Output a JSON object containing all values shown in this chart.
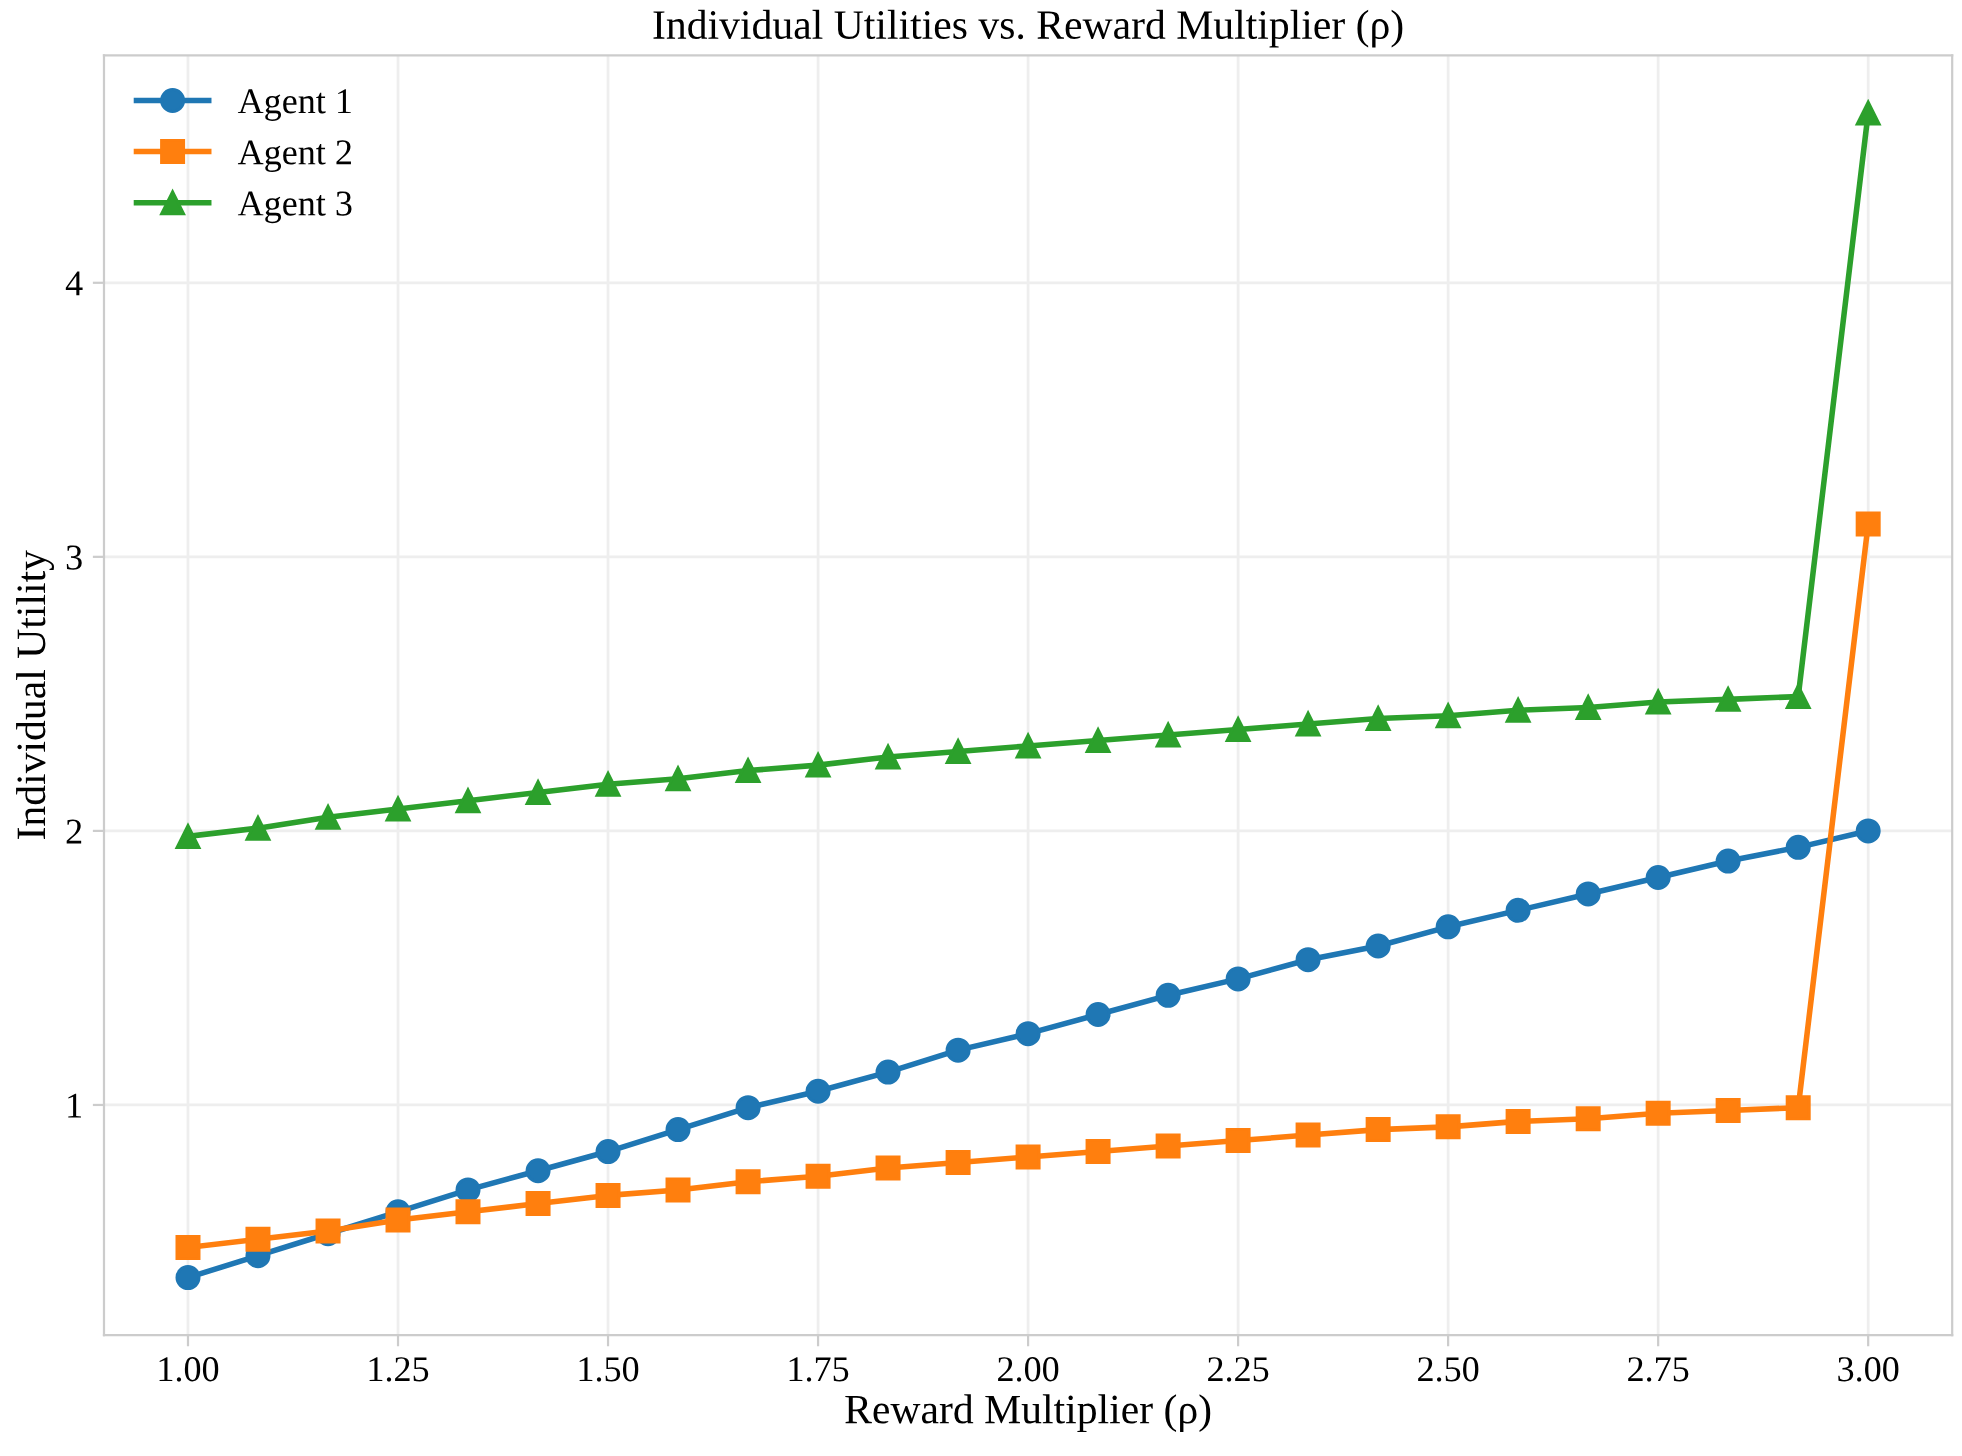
{
  "chart_data": {
    "type": "line",
    "title": "Individual Utilities vs. Reward Multiplier (ρ)",
    "xlabel": "Reward Multiplier (ρ)",
    "ylabel": "Individual Utility",
    "x": [
      1.0,
      1.0833,
      1.1667,
      1.25,
      1.3333,
      1.4167,
      1.5,
      1.5833,
      1.6667,
      1.75,
      1.8333,
      1.9167,
      2.0,
      2.0833,
      2.1667,
      2.25,
      2.3333,
      2.4167,
      2.5,
      2.5833,
      2.6667,
      2.75,
      2.8333,
      2.9167,
      3.0
    ],
    "series": [
      {
        "name": "Agent 1",
        "color": "#1f77b4",
        "marker": "circle",
        "values": [
          0.37,
          0.45,
          0.53,
          0.61,
          0.69,
          0.76,
          0.83,
          0.91,
          0.99,
          1.05,
          1.12,
          1.2,
          1.26,
          1.33,
          1.4,
          1.46,
          1.53,
          1.58,
          1.65,
          1.71,
          1.77,
          1.83,
          1.89,
          1.94,
          2.0
        ]
      },
      {
        "name": "Agent 2",
        "color": "#ff7f0e",
        "marker": "square",
        "values": [
          0.48,
          0.51,
          0.54,
          0.58,
          0.61,
          0.64,
          0.67,
          0.69,
          0.72,
          0.74,
          0.77,
          0.79,
          0.81,
          0.83,
          0.85,
          0.87,
          0.89,
          0.91,
          0.92,
          0.94,
          0.95,
          0.97,
          0.98,
          0.99,
          3.12
        ]
      },
      {
        "name": "Agent 3",
        "color": "#2ca02c",
        "marker": "triangle",
        "values": [
          1.98,
          2.01,
          2.05,
          2.08,
          2.11,
          2.14,
          2.17,
          2.19,
          2.22,
          2.24,
          2.27,
          2.29,
          2.31,
          2.33,
          2.35,
          2.37,
          2.39,
          2.41,
          2.42,
          2.44,
          2.45,
          2.47,
          2.48,
          2.49,
          4.62
        ]
      }
    ],
    "xlim": [
      0.9,
      3.1
    ],
    "xticks": [
      {
        "value": 1.0,
        "label": "1.00"
      },
      {
        "value": 1.25,
        "label": "1.25"
      },
      {
        "value": 1.5,
        "label": "1.50"
      },
      {
        "value": 1.75,
        "label": "1.75"
      },
      {
        "value": 2.0,
        "label": "2.00"
      },
      {
        "value": 2.25,
        "label": "2.25"
      },
      {
        "value": 2.5,
        "label": "2.50"
      },
      {
        "value": 2.75,
        "label": "2.75"
      },
      {
        "value": 3.0,
        "label": "3.00"
      }
    ],
    "ylim": [
      0.16,
      4.83
    ],
    "yticks": [
      1,
      2,
      3,
      4
    ],
    "grid": true,
    "legend": "top left",
    "line_style": "solid"
  }
}
